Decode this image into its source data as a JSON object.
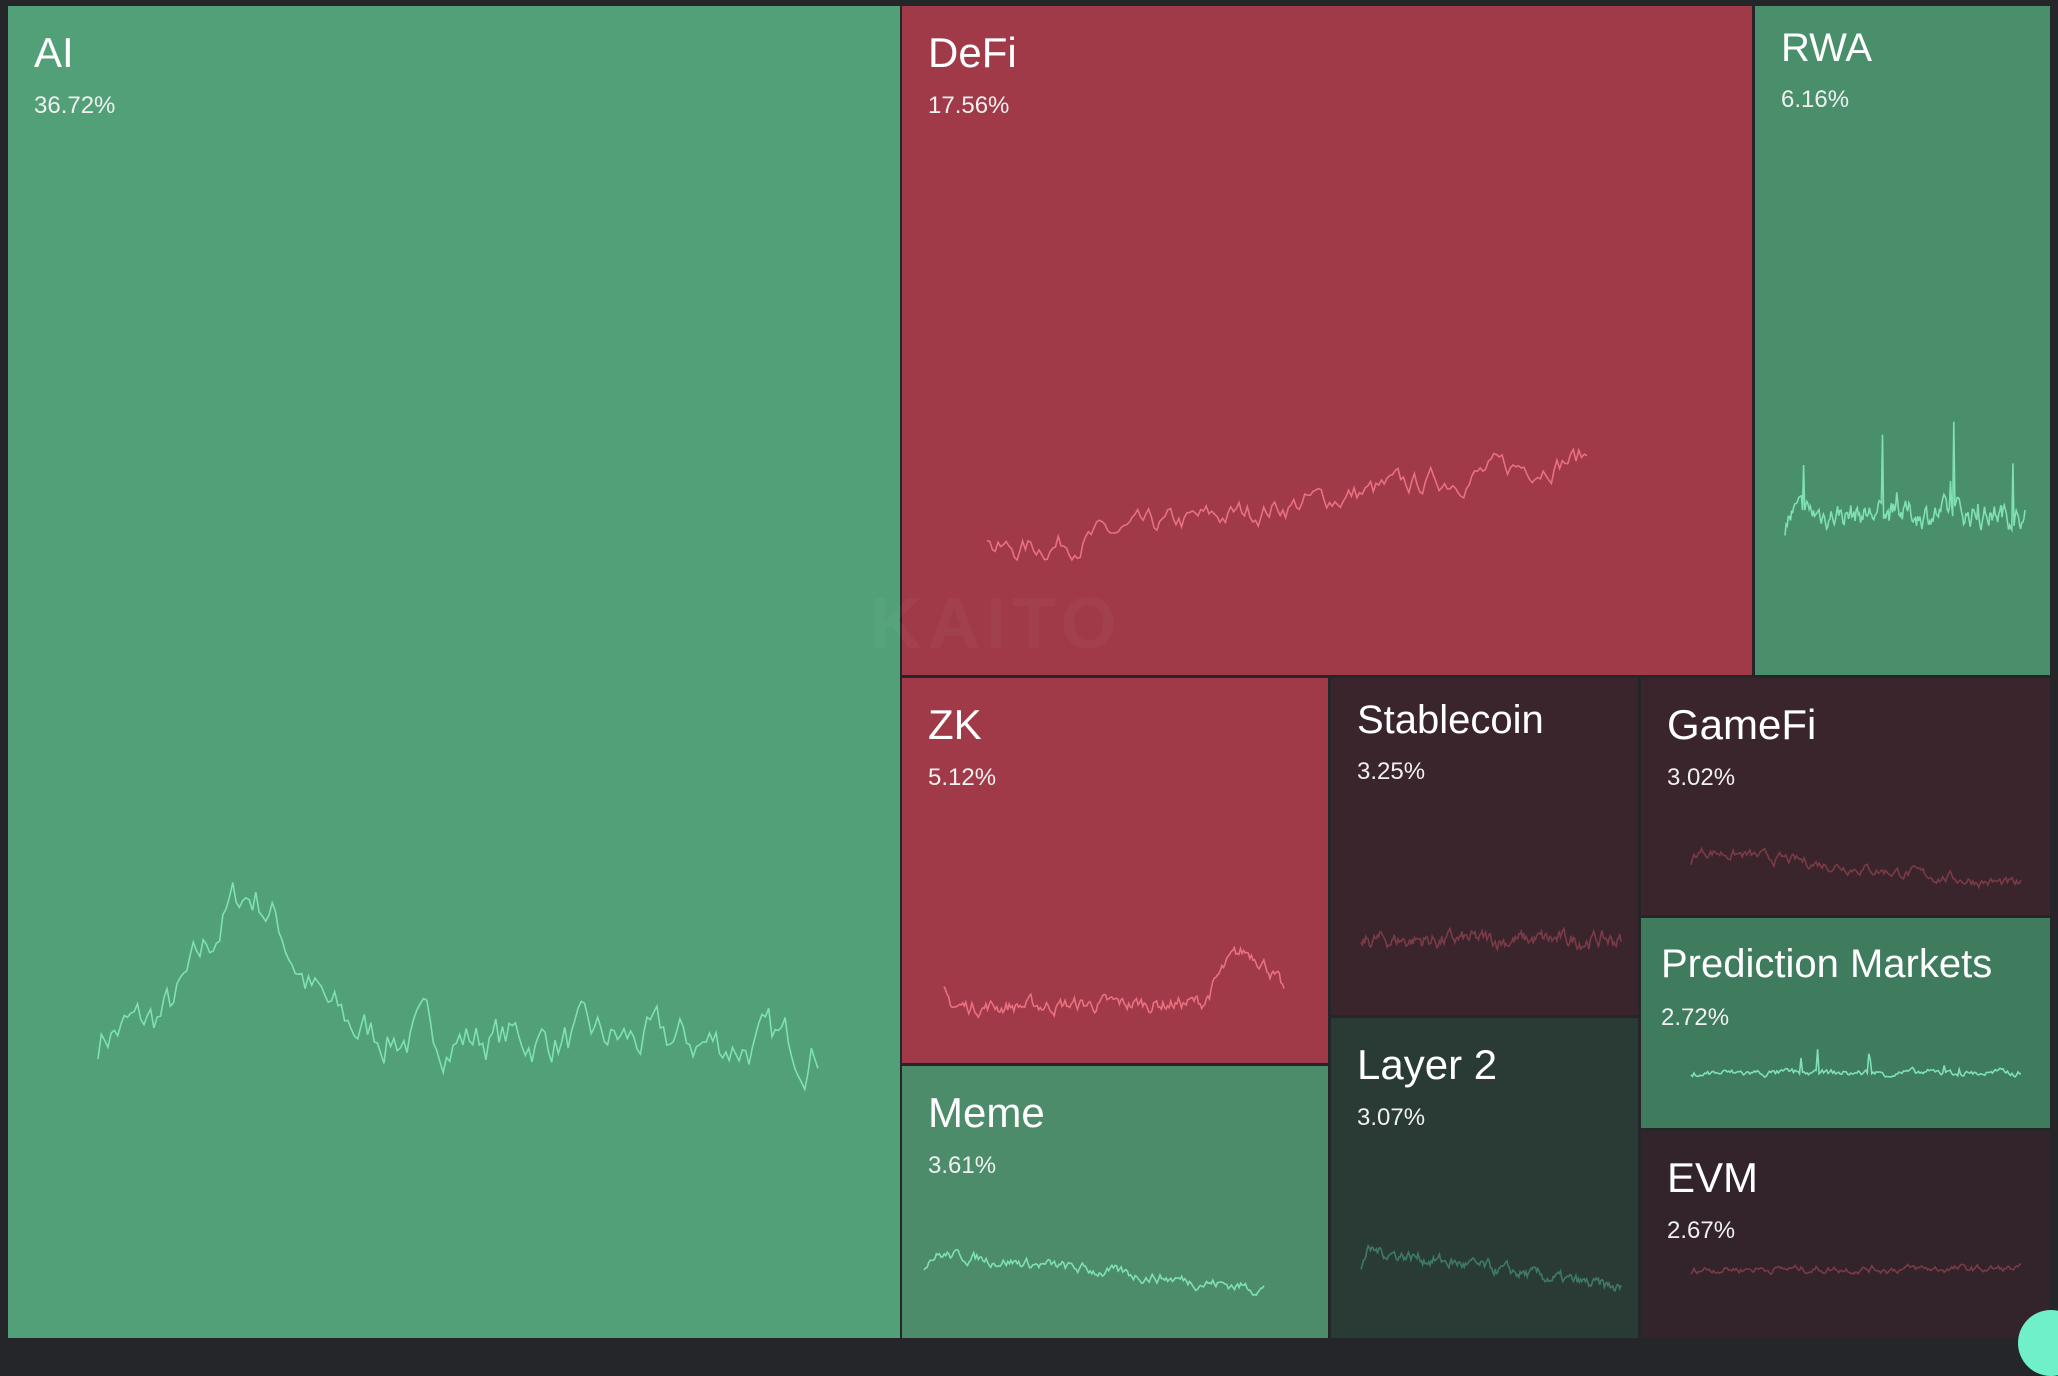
{
  "watermark": "KAITO",
  "colors": {
    "background": "#24262a",
    "up_line": "#7fe0b5",
    "down_line_on_red": "#e8707f",
    "dark_red_line": "#7a3a47",
    "dark_green_line": "#3e7a62"
  },
  "tiles": [
    {
      "name": "AI",
      "percent": "36.72%",
      "color": "#52a077"
    },
    {
      "name": "DeFi",
      "percent": "17.56%",
      "color": "#a03a48"
    },
    {
      "name": "RWA",
      "percent": "6.16%",
      "color": "#4a8f6c"
    },
    {
      "name": "ZK",
      "percent": "5.12%",
      "color": "#a03a48"
    },
    {
      "name": "Stablecoin",
      "percent": "3.25%",
      "color": "#3a252c"
    },
    {
      "name": "GameFi",
      "percent": "3.02%",
      "color": "#3a252c"
    },
    {
      "name": "Prediction Markets",
      "percent": "2.72%",
      "color": "#3f7b5d"
    },
    {
      "name": "Meme",
      "percent": "3.61%",
      "color": "#4c8c6a"
    },
    {
      "name": "Layer 2",
      "percent": "3.07%",
      "color": "#2a3b36"
    },
    {
      "name": "EVM",
      "percent": "2.67%",
      "color": "#33232b"
    }
  ]
}
